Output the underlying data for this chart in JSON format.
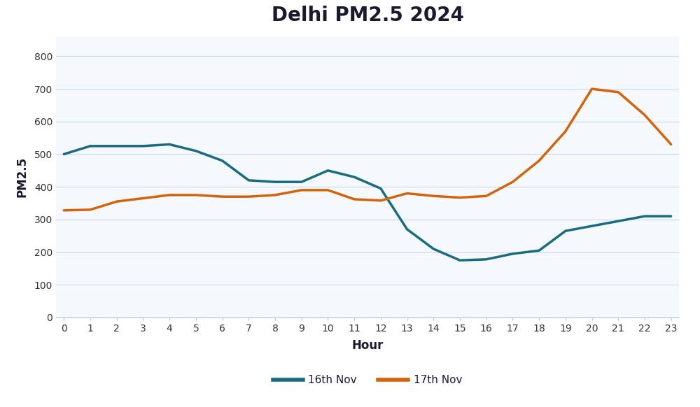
{
  "title": "Delhi PM2.5 2024",
  "xlabel": "Hour",
  "ylabel": "PM2.5",
  "hours": [
    0,
    1,
    2,
    3,
    4,
    5,
    6,
    7,
    8,
    9,
    10,
    11,
    12,
    13,
    14,
    15,
    16,
    17,
    18,
    19,
    20,
    21,
    22,
    23
  ],
  "nov16": [
    500,
    525,
    525,
    525,
    530,
    510,
    480,
    420,
    415,
    415,
    450,
    430,
    395,
    270,
    210,
    175,
    178,
    195,
    205,
    265,
    280,
    295,
    310,
    310
  ],
  "nov17": [
    328,
    330,
    355,
    365,
    375,
    375,
    370,
    370,
    375,
    390,
    390,
    362,
    358,
    380,
    372,
    367,
    372,
    415,
    480,
    570,
    700,
    690,
    620,
    530
  ],
  "nov16_color": "#1b6b80",
  "nov17_color": "#d4640a",
  "nov16_label": "16th Nov",
  "nov17_label": "17th Nov",
  "fig_bg_color": "#ffffff",
  "plot_bg_color": "#f5f8fc",
  "grid_color": "#c5d8ec",
  "axis_line_color": "#b0c4d8",
  "tick_color": "#333333",
  "title_color": "#1a1a2e",
  "ylim": [
    0,
    860
  ],
  "yticks": [
    0,
    100,
    200,
    300,
    400,
    500,
    600,
    700,
    800
  ],
  "title_fontsize": 20,
  "title_fontweight": "bold",
  "axis_label_fontsize": 12,
  "tick_fontsize": 10,
  "legend_fontsize": 11,
  "linewidth": 2.5
}
